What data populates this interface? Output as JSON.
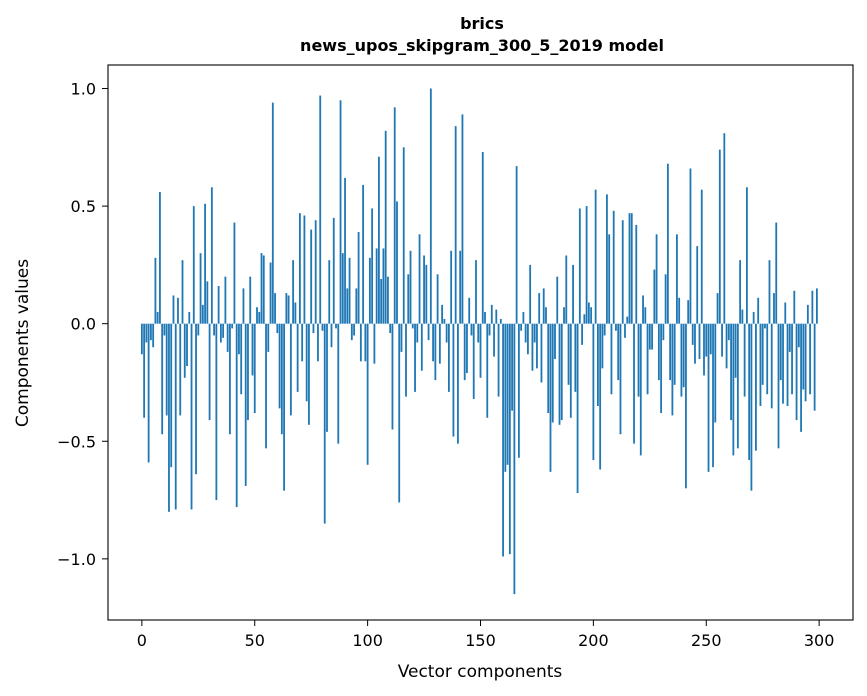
{
  "chart_data": {
    "type": "bar",
    "title_line1": "brics",
    "title_line2": "news_upos_skipgram_300_5_2019 model",
    "xlabel": "Vector components",
    "ylabel": "Components values",
    "xlim": [
      -15,
      315
    ],
    "ylim": [
      -1.26,
      1.1
    ],
    "x_ticks": [
      0,
      50,
      100,
      150,
      200,
      250,
      300
    ],
    "x_tick_labels": [
      "0",
      "50",
      "100",
      "150",
      "200",
      "250",
      "300"
    ],
    "y_ticks": [
      -1.0,
      -0.5,
      0.0,
      0.5,
      1.0
    ],
    "y_tick_labels": [
      "−1.0",
      "−0.5",
      "0.0",
      "0.5",
      "1.0"
    ],
    "bar_color": "#1f77b4",
    "grid": false,
    "values": [
      -0.13,
      -0.4,
      -0.08,
      -0.59,
      -0.07,
      -0.1,
      0.28,
      0.05,
      0.56,
      -0.47,
      -0.05,
      -0.39,
      -0.8,
      -0.61,
      0.12,
      -0.79,
      0.11,
      -0.39,
      0.27,
      -0.23,
      -0.18,
      0.05,
      -0.79,
      0.5,
      -0.64,
      -0.05,
      0.3,
      0.08,
      0.51,
      0.18,
      -0.41,
      0.58,
      -0.05,
      -0.75,
      0.16,
      -0.08,
      -0.06,
      0.2,
      -0.12,
      -0.47,
      -0.02,
      0.43,
      -0.78,
      -0.13,
      -0.3,
      0.15,
      -0.69,
      -0.41,
      0.2,
      -0.22,
      -0.38,
      0.07,
      0.05,
      0.3,
      0.29,
      -0.53,
      -0.12,
      0.26,
      0.94,
      0.13,
      -0.04,
      -0.36,
      -0.47,
      -0.71,
      0.13,
      0.12,
      -0.39,
      0.27,
      0.09,
      -0.29,
      0.47,
      -0.16,
      0.46,
      -0.33,
      -0.43,
      0.4,
      -0.04,
      0.44,
      -0.16,
      0.97,
      -0.03,
      -0.85,
      -0.46,
      0.27,
      -0.1,
      0.45,
      -0.02,
      -0.51,
      0.95,
      0.3,
      0.62,
      0.15,
      0.28,
      -0.07,
      -0.05,
      0.15,
      0.39,
      -0.16,
      0.59,
      -0.16,
      -0.6,
      0.28,
      0.49,
      -0.17,
      0.32,
      0.71,
      0.19,
      0.32,
      0.82,
      0.2,
      -0.04,
      -0.45,
      0.92,
      0.52,
      -0.76,
      -0.12,
      0.75,
      -0.31,
      0.21,
      0.31,
      -0.02,
      -0.29,
      -0.08,
      0.38,
      -0.2,
      0.29,
      0.25,
      -0.07,
      1.0,
      -0.16,
      -0.24,
      0.21,
      -0.17,
      0.08,
      0.02,
      -0.08,
      -0.29,
      0.31,
      -0.48,
      0.84,
      -0.51,
      0.31,
      0.89,
      -0.24,
      -0.21,
      0.11,
      -0.05,
      -0.32,
      0.27,
      -0.08,
      -0.23,
      0.73,
      0.05,
      -0.4,
      -0.05,
      0.08,
      -0.14,
      0.06,
      -0.31,
      0.02,
      -0.99,
      -0.63,
      -0.6,
      -0.98,
      -0.37,
      -1.15,
      0.67,
      -0.57,
      -0.03,
      0.05,
      -0.08,
      -0.13,
      0.25,
      -0.2,
      -0.08,
      -0.19,
      0.13,
      -0.25,
      0.15,
      0.07,
      -0.38,
      -0.63,
      -0.42,
      -0.15,
      0.2,
      -0.43,
      -0.41,
      0.07,
      0.29,
      -0.26,
      -0.4,
      0.25,
      -0.29,
      -0.72,
      0.49,
      -0.09,
      0.04,
      0.5,
      0.09,
      0.07,
      -0.58,
      0.57,
      -0.35,
      -0.62,
      -0.19,
      -0.05,
      0.55,
      0.38,
      -0.3,
      0.48,
      -0.03,
      -0.24,
      -0.47,
      0.44,
      -0.06,
      0.03,
      0.47,
      0.47,
      -0.51,
      0.42,
      -0.31,
      -0.56,
      0.12,
      0.07,
      -0.3,
      -0.11,
      -0.11,
      0.23,
      0.38,
      -0.24,
      -0.38,
      -0.07,
      0.21,
      0.68,
      -0.24,
      -0.39,
      -0.26,
      0.38,
      0.11,
      -0.31,
      -0.27,
      -0.7,
      0.1,
      0.66,
      -0.09,
      -0.17,
      0.33,
      -0.15,
      0.57,
      -0.22,
      -0.14,
      -0.63,
      -0.13,
      -0.61,
      -0.42,
      0.13,
      0.74,
      -0.14,
      0.81,
      -0.19,
      -0.07,
      -0.41,
      -0.56,
      -0.23,
      -0.53,
      0.27,
      0.06,
      -0.31,
      0.58,
      -0.58,
      -0.71,
      0.05,
      -0.54,
      0.11,
      -0.35,
      -0.26,
      -0.02,
      -0.3,
      0.27,
      -0.36,
      0.13,
      0.43,
      -0.53,
      -0.24,
      -0.34,
      0.09,
      -0.35,
      -0.12,
      -0.3,
      0.14,
      -0.41,
      -0.1,
      -0.46,
      -0.28,
      -0.33,
      0.08,
      -0.3,
      0.14,
      -0.37,
      0.15
    ]
  }
}
